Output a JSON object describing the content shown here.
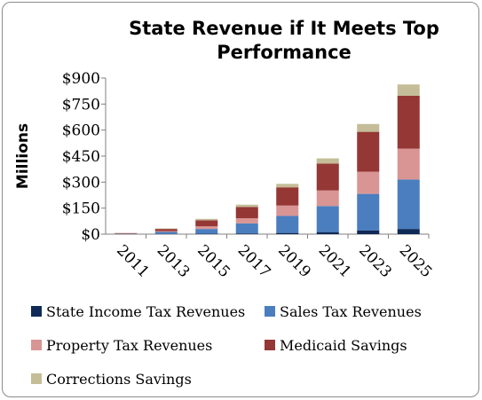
{
  "chart_data": {
    "type": "bar",
    "stacked": true,
    "title_lines": [
      "State Revenue if It Meets Top",
      "Performance"
    ],
    "ylabel": "Millions",
    "xlabel": "",
    "ylim": [
      0,
      900
    ],
    "yticks": [
      0,
      150,
      300,
      450,
      600,
      750,
      900
    ],
    "ytick_labels": [
      "$0",
      "$150",
      "$300",
      "$450",
      "$600",
      "$750",
      "$900"
    ],
    "categories": [
      "2011",
      "2013",
      "2015",
      "2017",
      "2019",
      "2021",
      "2023",
      "2025"
    ],
    "grid": false,
    "legend_position": "bottom",
    "series": [
      {
        "name": "State Income Tax Revenues",
        "color": "#0f2a57",
        "values": [
          0,
          1,
          2,
          4,
          7,
          12,
          22,
          30
        ]
      },
      {
        "name": "Sales Tax Revenues",
        "color": "#4a7ebf",
        "values": [
          2,
          12,
          28,
          58,
          98,
          150,
          210,
          285
        ]
      },
      {
        "name": "Property Tax Revenues",
        "color": "#d99594",
        "values": [
          1,
          5,
          15,
          30,
          60,
          90,
          128,
          178
        ]
      },
      {
        "name": "Medicaid Savings",
        "color": "#953735",
        "values": [
          3,
          12,
          35,
          65,
          105,
          155,
          230,
          305
        ]
      },
      {
        "name": "Corrections Savings",
        "color": "#c4bd97",
        "values": [
          1,
          3,
          8,
          13,
          20,
          30,
          45,
          65
        ]
      }
    ]
  }
}
